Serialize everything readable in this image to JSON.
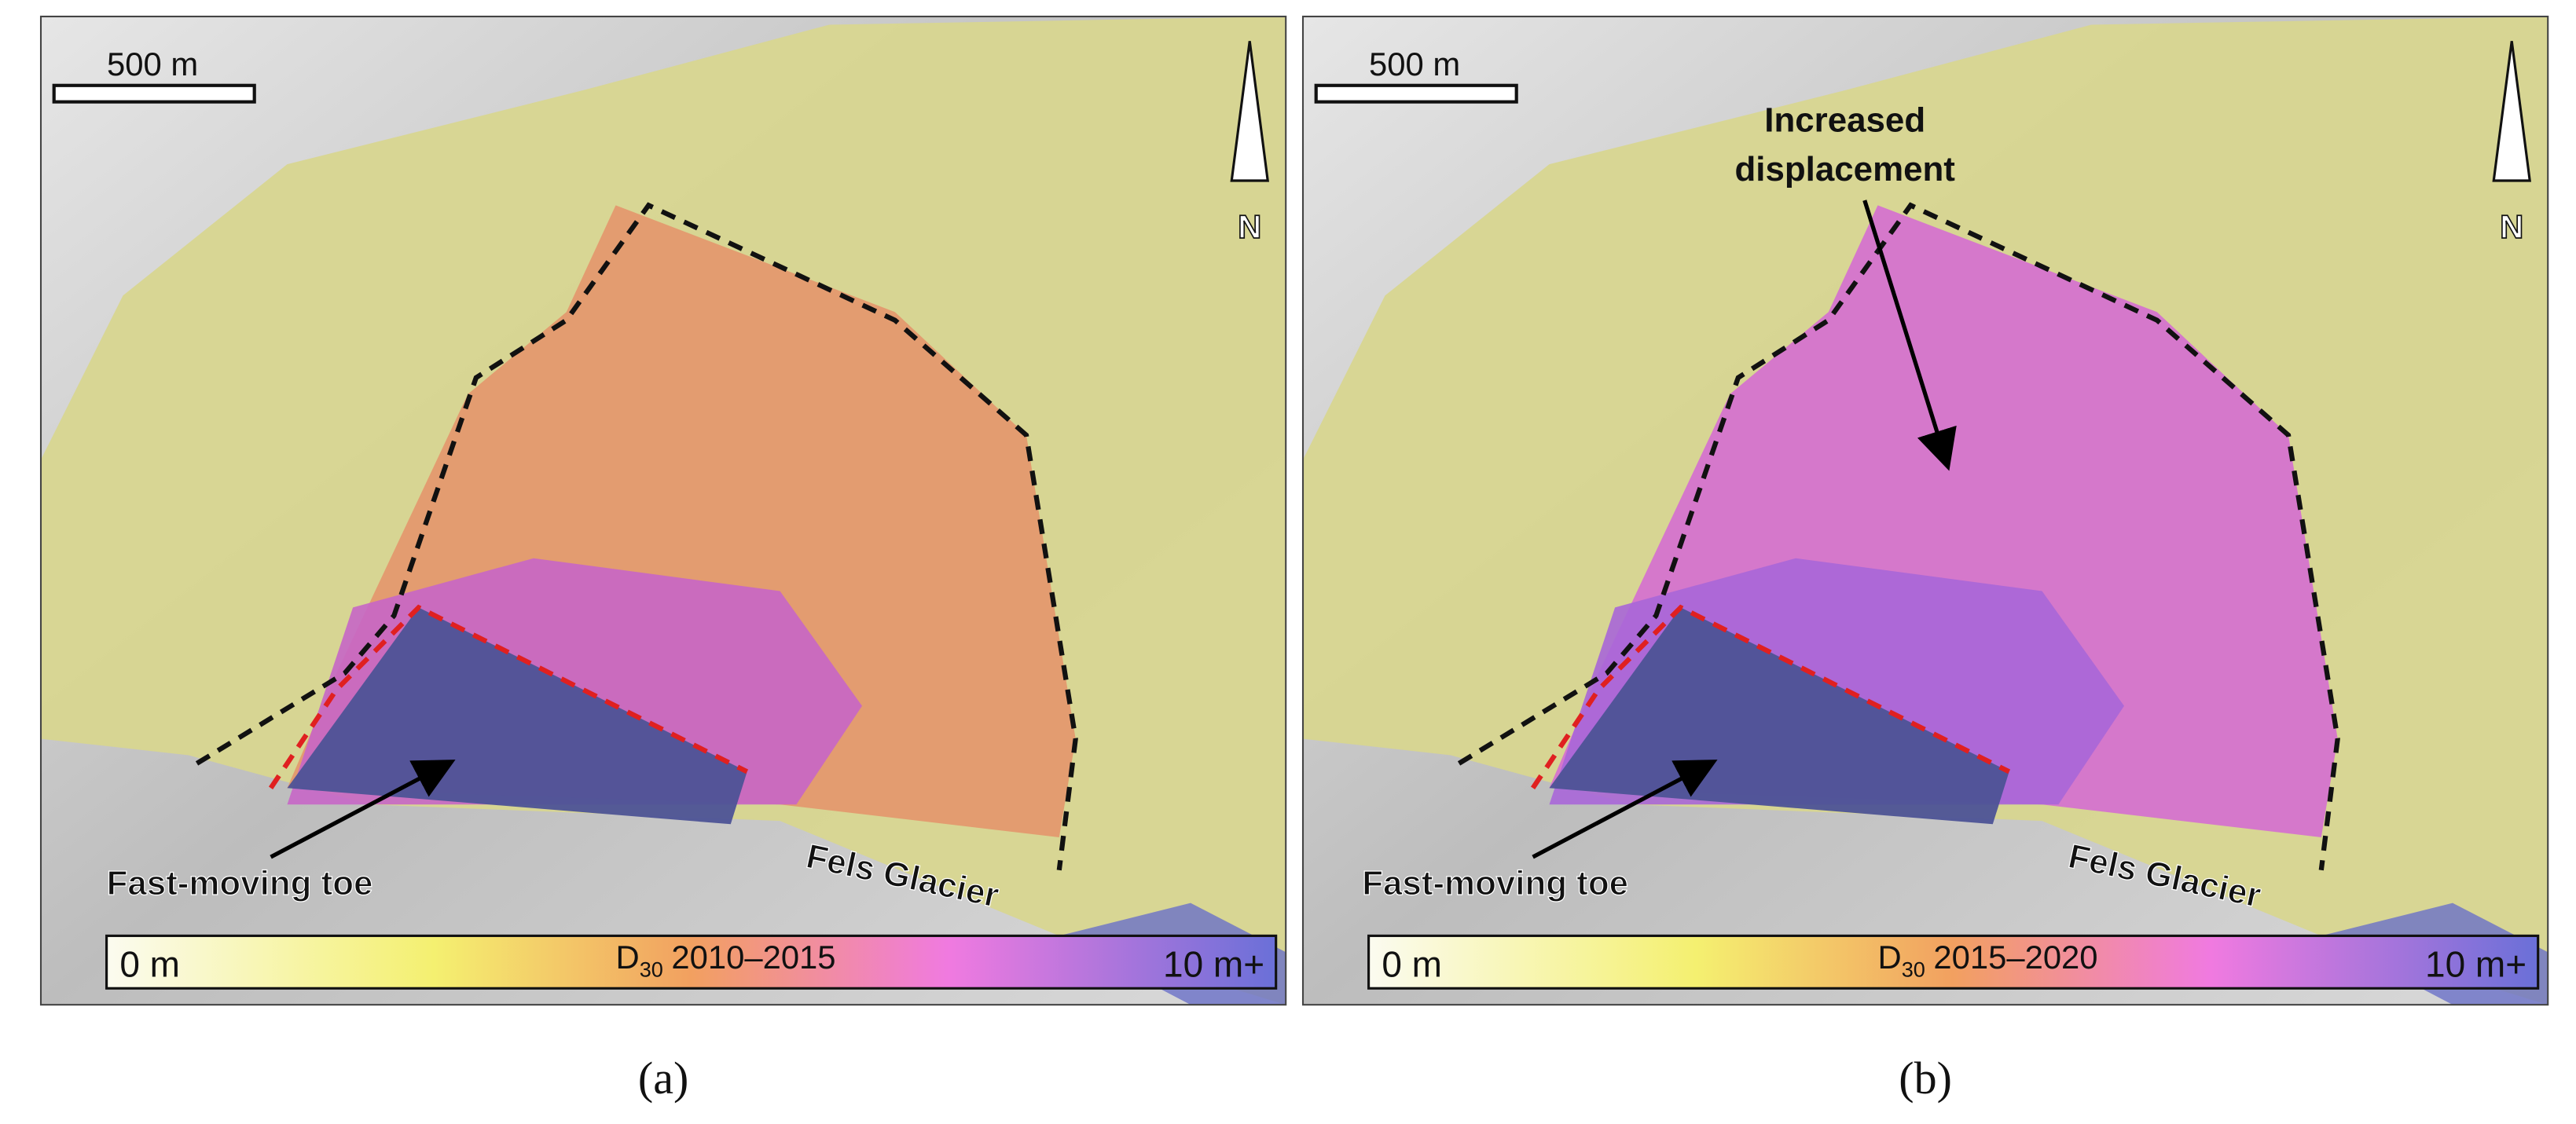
{
  "panels": [
    {
      "caption": "(a)",
      "scale_bar": "500 m",
      "north": "N",
      "colorbar": {
        "min_label": "0 m",
        "symbol": "D",
        "subscript": "30",
        "period": "2010–2015",
        "max_label": "10 m+"
      },
      "annotations": {
        "toe": "Fast-moving toe",
        "glacier": "Fels Glacier"
      }
    },
    {
      "caption": "(b)",
      "scale_bar": "500 m",
      "north": "N",
      "colorbar": {
        "min_label": "0 m",
        "symbol": "D",
        "subscript": "30",
        "period": "2015–2020",
        "max_label": "10 m+"
      },
      "annotations": {
        "increase": [
          "Increased",
          "displacement"
        ],
        "toe": "Fast-moving toe",
        "glacier": "Fels Glacier"
      }
    }
  ]
}
